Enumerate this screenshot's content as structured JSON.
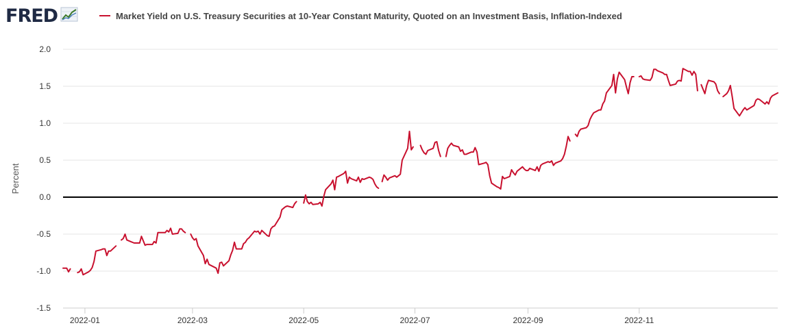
{
  "header": {
    "logo_text": "FRED",
    "logo_icon": "line-chart-icon",
    "series_color": "#c8102e"
  },
  "chart_data": {
    "type": "line",
    "title": "",
    "xlabel": "",
    "ylabel": "Percent",
    "series": [
      {
        "name": "Market Yield on U.S. Treasury Securities at 10-Year Constant Maturity, Quoted on an Investment Basis, Inflation-Indexed",
        "color": "#c8102e",
        "points": [
          [
            "2021-12-20",
            -0.96
          ],
          [
            "2021-12-21",
            -0.96
          ],
          [
            "2021-12-22",
            -0.96
          ],
          [
            "2021-12-23",
            -1.01
          ],
          [
            "2021-12-24",
            -0.97
          ],
          null,
          [
            "2021-12-28",
            -1.02
          ],
          [
            "2021-12-29",
            -1.01
          ],
          [
            "2021-12-30",
            -0.97
          ],
          [
            "2021-12-31",
            -1.05
          ],
          [
            "2022-01-03",
            -1.01
          ],
          [
            "2022-01-04",
            -0.99
          ],
          [
            "2022-01-05",
            -0.95
          ],
          [
            "2022-01-06",
            -0.87
          ],
          [
            "2022-01-07",
            -0.73
          ],
          [
            "2022-01-10",
            -0.71
          ],
          [
            "2022-01-11",
            -0.7
          ],
          [
            "2022-01-12",
            -0.7
          ],
          [
            "2022-01-13",
            -0.79
          ],
          [
            "2022-01-14",
            -0.73
          ],
          [
            "2022-01-15",
            -0.73
          ],
          [
            "2022-01-18",
            -0.66
          ],
          null,
          [
            "2022-01-21",
            -0.58
          ],
          [
            "2022-01-22",
            -0.56
          ],
          [
            "2022-01-23",
            -0.5
          ],
          [
            "2022-01-24",
            -0.58
          ],
          [
            "2022-01-26",
            -0.6
          ],
          [
            "2022-01-28",
            -0.62
          ],
          [
            "2022-01-31",
            -0.62
          ],
          [
            "2022-02-01",
            -0.53
          ],
          [
            "2022-02-03",
            -0.65
          ],
          [
            "2022-02-04",
            -0.64
          ],
          [
            "2022-02-07",
            -0.64
          ],
          [
            "2022-02-08",
            -0.6
          ],
          [
            "2022-02-09",
            -0.62
          ],
          [
            "2022-02-10",
            -0.48
          ],
          [
            "2022-02-11",
            -0.48
          ],
          [
            "2022-02-14",
            -0.48
          ],
          [
            "2022-02-15",
            -0.45
          ],
          [
            "2022-02-16",
            -0.47
          ],
          [
            "2022-02-17",
            -0.42
          ],
          [
            "2022-02-18",
            -0.5
          ],
          [
            "2022-02-21",
            -0.49
          ],
          [
            "2022-02-22",
            -0.43
          ],
          [
            "2022-02-23",
            -0.43
          ],
          [
            "2022-02-24",
            -0.46
          ],
          [
            "2022-02-25",
            -0.48
          ],
          null,
          [
            "2022-02-28",
            -0.5
          ],
          [
            "2022-03-01",
            -0.55
          ],
          [
            "2022-03-02",
            -0.58
          ],
          [
            "2022-03-03",
            -0.56
          ],
          [
            "2022-03-04",
            -0.66
          ],
          [
            "2022-03-07",
            -0.79
          ],
          [
            "2022-03-08",
            -0.9
          ],
          [
            "2022-03-09",
            -0.84
          ],
          [
            "2022-03-10",
            -0.91
          ],
          [
            "2022-03-14",
            -0.96
          ],
          [
            "2022-03-15",
            -1.03
          ],
          [
            "2022-03-16",
            -0.89
          ],
          [
            "2022-03-17",
            -0.88
          ],
          [
            "2022-03-18",
            -0.93
          ],
          [
            "2022-03-21",
            -0.86
          ],
          [
            "2022-03-22",
            -0.78
          ],
          [
            "2022-03-23",
            -0.72
          ],
          [
            "2022-03-24",
            -0.61
          ],
          [
            "2022-03-25",
            -0.7
          ],
          [
            "2022-03-28",
            -0.7
          ],
          [
            "2022-03-29",
            -0.63
          ],
          [
            "2022-03-30",
            -0.61
          ],
          [
            "2022-03-31",
            -0.57
          ],
          [
            "2022-04-01",
            -0.55
          ],
          [
            "2022-04-04",
            -0.46
          ],
          [
            "2022-04-05",
            -0.47
          ],
          [
            "2022-04-06",
            -0.46
          ],
          [
            "2022-04-07",
            -0.5
          ],
          [
            "2022-04-08",
            -0.45
          ],
          [
            "2022-04-11",
            -0.52
          ],
          [
            "2022-04-12",
            -0.53
          ],
          [
            "2022-04-13",
            -0.43
          ],
          [
            "2022-04-14",
            -0.4
          ],
          [
            "2022-04-15",
            -0.39
          ],
          [
            "2022-04-18",
            -0.27
          ],
          [
            "2022-04-19",
            -0.17
          ],
          [
            "2022-04-20",
            -0.15
          ],
          [
            "2022-04-21",
            -0.13
          ],
          [
            "2022-04-22",
            -0.12
          ],
          [
            "2022-04-25",
            -0.14
          ],
          [
            "2022-04-26",
            -0.09
          ],
          [
            "2022-04-27",
            -0.06
          ],
          null,
          [
            "2022-05-01",
            -0.08
          ],
          [
            "2022-05-02",
            0.03
          ],
          [
            "2022-05-03",
            -0.06
          ],
          [
            "2022-05-04",
            -0.09
          ],
          [
            "2022-05-05",
            -0.07
          ],
          [
            "2022-05-06",
            -0.1
          ],
          [
            "2022-05-09",
            -0.09
          ],
          [
            "2022-05-10",
            -0.07
          ],
          [
            "2022-05-11",
            -0.12
          ],
          [
            "2022-05-12",
            0.01
          ],
          [
            "2022-05-13",
            0.1
          ],
          [
            "2022-05-16",
            0.18
          ],
          [
            "2022-05-17",
            0.23
          ],
          [
            "2022-05-18",
            0.1
          ],
          [
            "2022-05-19",
            0.27
          ],
          [
            "2022-05-20",
            0.28
          ],
          [
            "2022-05-23",
            0.32
          ],
          [
            "2022-05-24",
            0.35
          ],
          [
            "2022-05-25",
            0.19
          ],
          [
            "2022-05-26",
            0.27
          ],
          [
            "2022-05-27",
            0.25
          ],
          [
            "2022-05-30",
            0.22
          ],
          [
            "2022-05-31",
            0.27
          ],
          [
            "2022-06-01",
            0.2
          ],
          [
            "2022-06-02",
            0.25
          ],
          [
            "2022-06-03",
            0.24
          ],
          [
            "2022-06-06",
            0.27
          ],
          [
            "2022-06-07",
            0.26
          ],
          [
            "2022-06-08",
            0.24
          ],
          [
            "2022-06-09",
            0.18
          ],
          [
            "2022-06-10",
            0.14
          ],
          [
            "2022-06-11",
            0.12
          ],
          null,
          [
            "2022-06-13",
            0.21
          ],
          [
            "2022-06-14",
            0.3
          ],
          [
            "2022-06-15",
            0.27
          ],
          [
            "2022-06-16",
            0.23
          ],
          [
            "2022-06-17",
            0.26
          ],
          [
            "2022-06-20",
            0.29
          ],
          [
            "2022-06-21",
            0.27
          ],
          [
            "2022-06-22",
            0.29
          ],
          [
            "2022-06-23",
            0.31
          ],
          [
            "2022-06-24",
            0.5
          ],
          [
            "2022-06-27",
            0.66
          ],
          [
            "2022-06-28",
            0.89
          ],
          [
            "2022-06-29",
            0.64
          ],
          [
            "2022-06-30",
            0.68
          ],
          null,
          [
            "2022-07-04",
            0.7
          ],
          [
            "2022-07-05",
            0.64
          ],
          [
            "2022-07-06",
            0.6
          ],
          [
            "2022-07-07",
            0.58
          ],
          [
            "2022-07-08",
            0.63
          ],
          [
            "2022-07-11",
            0.66
          ],
          [
            "2022-07-12",
            0.74
          ],
          [
            "2022-07-13",
            0.75
          ],
          [
            "2022-07-14",
            0.63
          ],
          [
            "2022-07-15",
            0.55
          ],
          null,
          [
            "2022-07-18",
            0.55
          ],
          [
            "2022-07-19",
            0.66
          ],
          [
            "2022-07-20",
            0.7
          ],
          [
            "2022-07-21",
            0.73
          ],
          [
            "2022-07-22",
            0.7
          ],
          [
            "2022-07-25",
            0.68
          ],
          [
            "2022-07-26",
            0.62
          ],
          [
            "2022-07-27",
            0.64
          ],
          [
            "2022-07-28",
            0.58
          ],
          [
            "2022-07-29",
            0.58
          ],
          [
            "2022-08-01",
            0.61
          ],
          [
            "2022-08-02",
            0.61
          ],
          [
            "2022-08-03",
            0.67
          ],
          [
            "2022-08-04",
            0.61
          ],
          [
            "2022-08-05",
            0.44
          ],
          [
            "2022-08-08",
            0.46
          ],
          [
            "2022-08-09",
            0.47
          ],
          [
            "2022-08-10",
            0.44
          ],
          [
            "2022-08-11",
            0.29
          ],
          [
            "2022-08-12",
            0.19
          ],
          [
            "2022-08-15",
            0.14
          ],
          [
            "2022-08-16",
            0.13
          ],
          [
            "2022-08-17",
            0.11
          ],
          [
            "2022-08-18",
            0.28
          ],
          [
            "2022-08-19",
            0.25
          ],
          [
            "2022-08-22",
            0.28
          ],
          [
            "2022-08-23",
            0.37
          ],
          [
            "2022-08-24",
            0.33
          ],
          [
            "2022-08-25",
            0.3
          ],
          [
            "2022-08-26",
            0.35
          ],
          [
            "2022-08-29",
            0.41
          ],
          [
            "2022-08-30",
            0.38
          ],
          [
            "2022-08-31",
            0.36
          ],
          [
            "2022-09-01",
            0.36
          ],
          [
            "2022-09-02",
            0.39
          ],
          [
            "2022-09-05",
            0.36
          ],
          [
            "2022-09-06",
            0.41
          ],
          [
            "2022-09-07",
            0.35
          ],
          [
            "2022-09-08",
            0.43
          ],
          [
            "2022-09-09",
            0.45
          ],
          [
            "2022-09-12",
            0.48
          ],
          [
            "2022-09-13",
            0.47
          ],
          [
            "2022-09-14",
            0.49
          ],
          [
            "2022-09-15",
            0.43
          ],
          [
            "2022-09-16",
            0.46
          ],
          [
            "2022-09-19",
            0.49
          ],
          [
            "2022-09-20",
            0.52
          ],
          [
            "2022-09-21",
            0.58
          ],
          [
            "2022-09-22",
            0.69
          ],
          [
            "2022-09-23",
            0.82
          ],
          [
            "2022-09-24",
            0.76
          ],
          null,
          [
            "2022-09-27",
            0.85
          ],
          [
            "2022-09-28",
            0.82
          ],
          [
            "2022-09-29",
            0.89
          ],
          [
            "2022-09-30",
            0.92
          ],
          [
            "2022-10-03",
            0.94
          ],
          [
            "2022-10-04",
            0.97
          ],
          [
            "2022-10-05",
            1.05
          ],
          [
            "2022-10-06",
            1.1
          ],
          [
            "2022-10-07",
            1.14
          ],
          [
            "2022-10-10",
            1.18
          ],
          [
            "2022-10-11",
            1.18
          ],
          [
            "2022-10-12",
            1.26
          ],
          [
            "2022-10-13",
            1.3
          ],
          [
            "2022-10-14",
            1.41
          ],
          [
            "2022-10-17",
            1.51
          ],
          [
            "2022-10-18",
            1.66
          ],
          [
            "2022-10-19",
            1.41
          ],
          [
            "2022-10-20",
            1.6
          ],
          [
            "2022-10-21",
            1.69
          ],
          [
            "2022-10-24",
            1.59
          ],
          [
            "2022-10-25",
            1.49
          ],
          [
            "2022-10-26",
            1.4
          ],
          [
            "2022-10-27",
            1.55
          ],
          [
            "2022-10-28",
            1.63
          ],
          [
            "2022-10-29",
            1.63
          ],
          null,
          [
            "2022-11-01",
            1.63
          ],
          [
            "2022-11-02",
            1.64
          ],
          [
            "2022-11-03",
            1.6
          ],
          [
            "2022-11-04",
            1.59
          ],
          [
            "2022-11-07",
            1.58
          ],
          [
            "2022-11-08",
            1.62
          ],
          [
            "2022-11-09",
            1.73
          ],
          [
            "2022-11-10",
            1.73
          ],
          [
            "2022-11-11",
            1.71
          ],
          [
            "2022-11-14",
            1.68
          ],
          [
            "2022-11-15",
            1.66
          ],
          [
            "2022-11-16",
            1.66
          ],
          [
            "2022-11-17",
            1.58
          ],
          [
            "2022-11-18",
            1.51
          ],
          [
            "2022-11-21",
            1.53
          ],
          [
            "2022-11-22",
            1.57
          ],
          [
            "2022-11-23",
            1.58
          ],
          [
            "2022-11-24",
            1.57
          ],
          [
            "2022-11-25",
            1.74
          ],
          [
            "2022-11-28",
            1.7
          ],
          [
            "2022-11-29",
            1.7
          ],
          [
            "2022-11-30",
            1.65
          ],
          [
            "2022-12-01",
            1.7
          ],
          [
            "2022-12-02",
            1.66
          ],
          [
            "2022-12-03",
            1.44
          ],
          null,
          [
            "2022-12-05",
            1.52
          ],
          [
            "2022-12-06",
            1.46
          ],
          [
            "2022-12-07",
            1.4
          ],
          [
            "2022-12-08",
            1.51
          ],
          [
            "2022-12-09",
            1.58
          ],
          [
            "2022-12-12",
            1.56
          ],
          [
            "2022-12-13",
            1.53
          ],
          [
            "2022-12-14",
            1.44
          ],
          [
            "2022-12-15",
            1.4
          ],
          null,
          [
            "2022-12-17",
            1.36
          ],
          [
            "2022-12-19",
            1.4
          ],
          [
            "2022-12-20",
            1.44
          ],
          [
            "2022-12-21",
            1.51
          ],
          [
            "2022-12-22",
            1.36
          ],
          [
            "2022-12-23",
            1.2
          ],
          [
            "2022-12-26",
            1.1
          ],
          [
            "2022-12-27",
            1.14
          ],
          [
            "2022-12-28",
            1.18
          ],
          [
            "2022-12-29",
            1.21
          ],
          [
            "2022-12-30",
            1.18
          ],
          [
            "2023-01-03",
            1.24
          ],
          [
            "2023-01-04",
            1.31
          ],
          [
            "2023-01-05",
            1.33
          ],
          [
            "2023-01-06",
            1.32
          ],
          [
            "2023-01-09",
            1.26
          ],
          [
            "2023-01-10",
            1.29
          ],
          [
            "2023-01-11",
            1.26
          ],
          [
            "2023-01-12",
            1.34
          ],
          [
            "2023-01-13",
            1.37
          ],
          [
            "2023-01-16",
            1.41
          ]
        ]
      }
    ],
    "x_ticks": [
      "2022-01",
      "2022-03",
      "2022-05",
      "2022-07",
      "2022-09",
      "2022-11"
    ],
    "y_ticks": [
      "2.0",
      "1.5",
      "1.0",
      "0.5",
      "0.0",
      "-0.5",
      "-1.0",
      "-1.5"
    ],
    "ylim": [
      -1.5,
      2.0
    ],
    "xlim": [
      "2021-12-20",
      "2023-01-16"
    ],
    "zero_line": true,
    "grid": "horizontal"
  }
}
